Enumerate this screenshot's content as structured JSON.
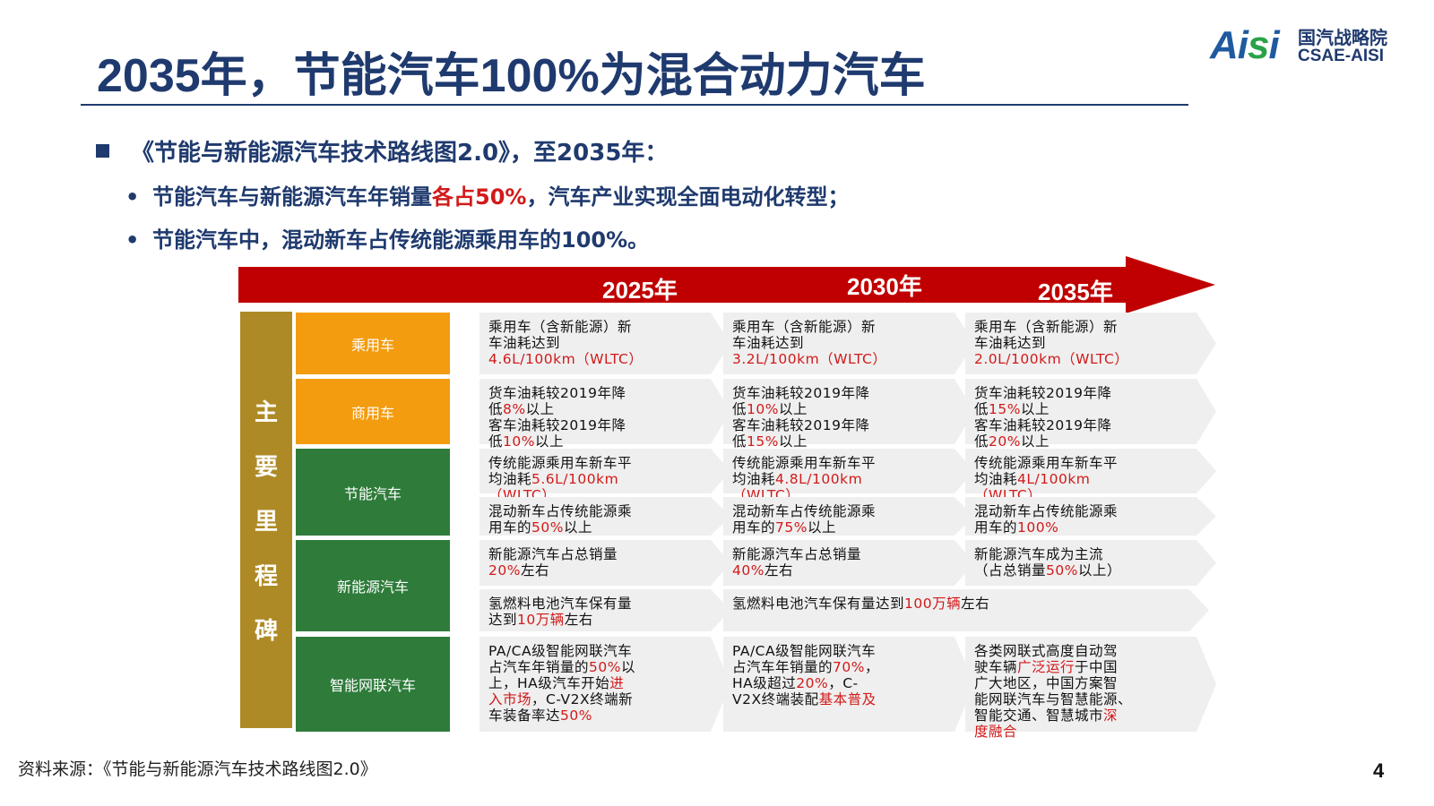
{
  "title": "2035年，节能汽车100%为混合动力汽车",
  "logo": {
    "mark_a": "Ai",
    "mark_s": "s",
    "mark_i": "i",
    "name_cn": "国汽战略院",
    "name_en": "CSAE-AISI"
  },
  "intro": {
    "main": "《节能与新能源汽车技术路线图2.0》，至2035年：",
    "sub1_pre": "节能汽车与新能源汽车年销量",
    "sub1_red": "各占50%",
    "sub1_post": "，汽车产业实现全面电动化转型；",
    "sub2": "节能汽车中，混动新车占传统能源乘用车的100%。",
    "bullet_dot": "•"
  },
  "timeline": {
    "years": [
      "2025年",
      "2030年",
      "2035年"
    ]
  },
  "milestone_label": [
    "主",
    "要",
    "里",
    "程",
    "碑"
  ],
  "categories": [
    "乘用车",
    "商用车",
    "节能汽车",
    "新能源汽车",
    "智能网联汽车"
  ],
  "cells": {
    "r1": [
      [
        "乘用车（含新能源）新",
        "车油耗达到",
        "{4.6L/100km（WLTC）}"
      ],
      [
        "乘用车（含新能源）新",
        "车油耗达到",
        "{3.2L/100km（WLTC）}"
      ],
      [
        "乘用车（含新能源）新",
        "车油耗达到",
        "{2.0L/100km（WLTC）}"
      ]
    ],
    "r2": [
      [
        "货车油耗较2019年降",
        "低{8%}以上",
        "客车油耗较2019年降",
        "低{10%}以上"
      ],
      [
        "货车油耗较2019年降",
        "低{10%}以上",
        "客车油耗较2019年降",
        "低{15%}以上"
      ],
      [
        "货车油耗较2019年降",
        "低{15%}以上",
        "客车油耗较2019年降",
        "低{20%}以上"
      ]
    ],
    "r3": [
      [
        "传统能源乘用车新车平",
        "均油耗{5.6L/100km}",
        "{（WLTC）}"
      ],
      [
        "传统能源乘用车新车平",
        "均油耗{4.8L/100km}",
        "{（WLTC）}"
      ],
      [
        "传统能源乘用车新车平",
        "均油耗{4L/100km}",
        "{（WLTC）}"
      ]
    ],
    "r4": [
      [
        "混动新车占传统能源乘",
        "用车的{50%}以上"
      ],
      [
        "混动新车占传统能源乘",
        "用车的{75%}以上"
      ],
      [
        "混动新车占传统能源乘",
        "用车的{100%}"
      ]
    ],
    "r5": [
      [
        "新能源汽车占总销量",
        "{20%}左右"
      ],
      [
        "新能源汽车占总销量",
        "{40%}左右"
      ],
      [
        "新能源汽车成为主流",
        "（占总销量{50%}以上）"
      ]
    ],
    "r6a": [
      "氢燃料电池汽车保有量",
      "达到{10万辆}左右"
    ],
    "r6b": [
      "氢燃料电池汽车保有量达到{100万辆}左右"
    ],
    "r7": [
      [
        "PA/CA级智能网联汽车",
        "占汽车年销量的{50%}以",
        "上，HA级汽车开始{进}",
        "{入市场}，C-V2X终端新",
        "车装备率达{50%}"
      ],
      [
        "PA/CA级智能网联汽车",
        "占汽车年销量的{70%}，",
        "HA级超过{20%}，C-",
        "V2X终端装配{基本普及}"
      ],
      [
        "各类网联式高度自动驾",
        "驶车辆{广泛运行}于中国",
        "广大地区，中国方案智",
        "能网联汽车与智慧能源、",
        "智能交通、智慧城市{深}",
        "{度融合}"
      ]
    ]
  },
  "footer": "资料来源：《节能与新能源汽车技术路线图2.0》",
  "page_number": "4",
  "colors": {
    "navy": "#1f3a6e",
    "arrow_red": "#c00000",
    "highlight_red": "#d11a1a",
    "gold": "#ae8a26",
    "orange": "#f39c10",
    "green": "#2e7b3a",
    "cell_bg": "#efefef"
  }
}
